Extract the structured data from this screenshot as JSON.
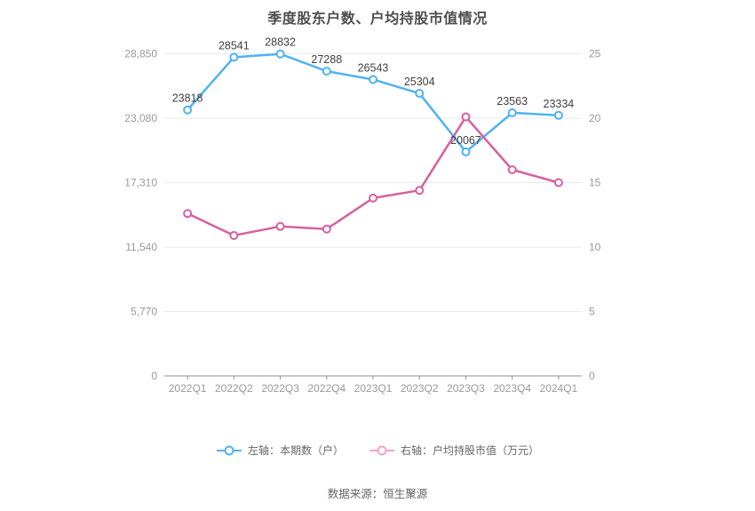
{
  "title": "季度股东户数、户均持股市值情况",
  "source": "数据来源：恒生聚源",
  "colors": {
    "blue_series": "#50b2f2",
    "pink_series": "#d8609f",
    "legend_pink": "#f2a2cd",
    "grid": "#e4eaf4",
    "axis_line": "#8f8f8f",
    "axis_text": "#999999",
    "data_label": "#404040",
    "background": "#ffffff"
  },
  "legend": {
    "items": [
      {
        "label": "左轴：本期数（户）",
        "marker_color": "#50b2f2"
      },
      {
        "label": "右轴：户均持股市值（万元）",
        "marker_color": "#f2a2cd"
      }
    ]
  },
  "chart_data": {
    "type": "line",
    "title": "季度股东户数、户均持股市值情况",
    "categories": [
      "2022Q1",
      "2022Q2",
      "2022Q3",
      "2022Q4",
      "2023Q1",
      "2023Q2",
      "2023Q3",
      "2023Q4",
      "2024Q1"
    ],
    "series": [
      {
        "name": "左轴：本期数（户）",
        "axis": "left",
        "color": "#50b2f2",
        "show_labels": true,
        "values": [
          23818,
          28541,
          28832,
          27288,
          26543,
          25304,
          20067,
          23563,
          23334
        ]
      },
      {
        "name": "右轴：户均持股市值（万元）",
        "axis": "right",
        "color": "#d8609f",
        "show_labels": false,
        "values": [
          12.6,
          10.9,
          11.6,
          11.4,
          13.8,
          14.4,
          20.1,
          16,
          15
        ]
      }
    ],
    "left_axis": {
      "min": 0,
      "max": 28850,
      "tick_labels": [
        "0",
        "5,770",
        "11,540",
        "17,310",
        "23,080",
        "28,850"
      ]
    },
    "right_axis": {
      "min": 0,
      "max": 25,
      "tick_labels": [
        "0",
        "5",
        "10",
        "15",
        "20",
        "25"
      ]
    },
    "grid": true,
    "legend_position": "bottom"
  }
}
